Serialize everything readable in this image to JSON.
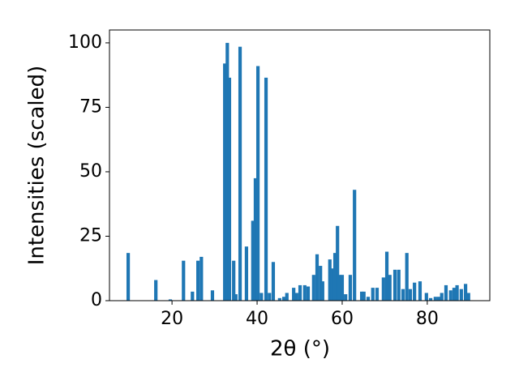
{
  "chart_data": {
    "type": "bar",
    "xlabel": "2θ (°)",
    "ylabel": "Intensities (scaled)",
    "color": "#1f77b4",
    "x": [
      9.7,
      16.2,
      19.6,
      22.7,
      24.8,
      26.1,
      26.9,
      29.5,
      32.4,
      33.0,
      33.5,
      34.5,
      35.0,
      36.0,
      37.5,
      39.0,
      39.6,
      40.2,
      41.0,
      42.1,
      42.9,
      43.8,
      45.3,
      46.3,
      47.0,
      48.6,
      49.3,
      50.1,
      51.2,
      52.0,
      53.3,
      54.1,
      54.9,
      55.4,
      57.1,
      57.7,
      58.3,
      58.9,
      59.4,
      60.0,
      60.8,
      61.9,
      62.9,
      64.6,
      65.1,
      66.1,
      67.2,
      68.2,
      69.7,
      70.5,
      71.2,
      72.4,
      73.3,
      74.3,
      75.2,
      76.0,
      77.0,
      78.3,
      79.8,
      80.8,
      81.9,
      82.7,
      83.4,
      84.4,
      85.5,
      86.3,
      87.0,
      88.0,
      89.0,
      89.7
    ],
    "values": [
      18.5,
      8,
      0.5,
      15.5,
      3.5,
      15.5,
      17,
      4,
      92,
      100,
      86.5,
      15.5,
      2.5,
      98.5,
      21,
      31,
      47.5,
      91,
      3,
      86.5,
      3,
      15,
      1,
      1.5,
      3,
      5,
      3,
      6,
      6,
      5.5,
      10,
      18,
      13.5,
      7.5,
      16,
      12.5,
      18.5,
      29,
      10,
      10,
      2.5,
      10,
      43,
      3.5,
      3.5,
      1.5,
      5,
      5,
      9,
      19,
      10,
      12,
      12,
      4.5,
      18.5,
      4.5,
      7,
      7.5,
      3,
      1,
      1.5,
      1.5,
      3,
      6,
      4,
      5,
      6,
      4.5,
      6.5,
      3
    ],
    "xlim": [
      5.3,
      94.7
    ],
    "ylim": [
      0,
      105
    ],
    "xticks": [
      20,
      40,
      60,
      80
    ],
    "yticks": [
      0,
      25,
      50,
      75,
      100
    ]
  }
}
